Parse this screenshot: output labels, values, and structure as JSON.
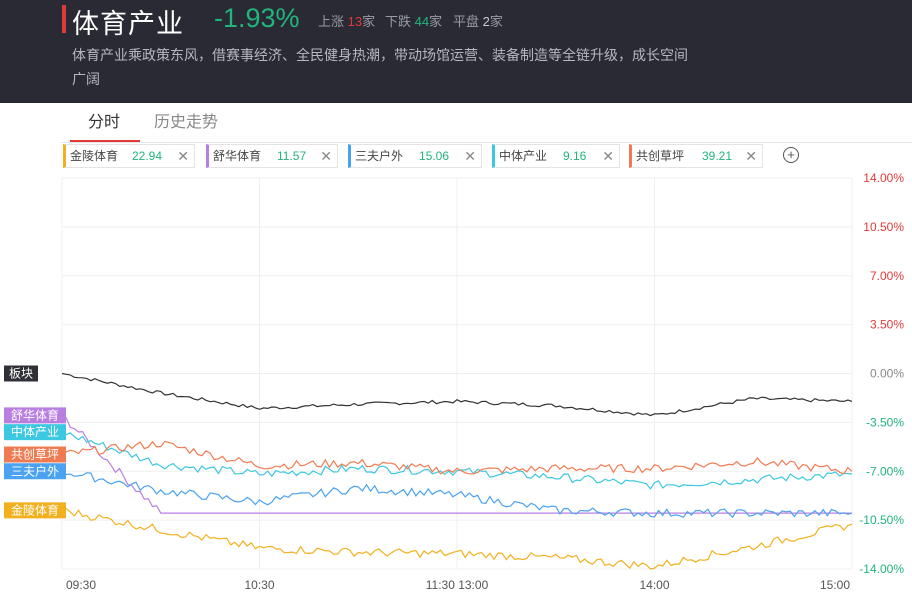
{
  "header": {
    "title": "体育产业",
    "change": "-1.93%",
    "up_label": "上涨",
    "up_count": "13",
    "down_label": "下跌",
    "down_count": "44",
    "flat_label": "平盘",
    "flat_count": "2",
    "unit": "家",
    "description": "体育产业乘政策东风，借赛事经济、全民健身热潮，带动场馆运营、装备制造等全链升级，成长空间广阔",
    "accent_color": "#e23a3a"
  },
  "tabs": [
    {
      "label": "分时"
    },
    {
      "label": "历史走势"
    }
  ],
  "stocks": [
    {
      "name": "金陵体育",
      "value": "22.94",
      "color": "#f2b01e"
    },
    {
      "name": "舒华体育",
      "value": "11.57",
      "color": "#b97fe0"
    },
    {
      "name": "三夫户外",
      "value": "15.06",
      "color": "#4aa2f0"
    },
    {
      "name": "中体产业",
      "value": "9.16",
      "color": "#3cc8e0"
    },
    {
      "name": "共创草坪",
      "value": "39.21",
      "color": "#f07b52"
    }
  ],
  "chart_data": {
    "type": "line",
    "y_unit": "%",
    "ylim": [
      -14.0,
      14.0
    ],
    "y_ticks": [
      "14.00%",
      "10.50%",
      "7.00%",
      "3.50%",
      "0.00%",
      "-3.50%",
      "-7.00%",
      "-10.50%",
      "-14.00%"
    ],
    "x_ticks": [
      "09:30",
      "10:30",
      "11:30 13:00",
      "14:00",
      "15:00"
    ],
    "x": [
      "09:30",
      "10:00",
      "10:30",
      "11:00",
      "11:30/13:00",
      "13:30",
      "14:00",
      "14:30",
      "15:00"
    ],
    "grid": true,
    "series": [
      {
        "name": "板块",
        "color": "#333333",
        "values": [
          0.0,
          -1.4,
          -2.5,
          -2.2,
          -2.0,
          -2.3,
          -3.0,
          -1.8,
          -2.0
        ]
      },
      {
        "name": "舒华体育",
        "color": "#b97fe0",
        "values": [
          -3.0,
          -10.0,
          -10.0,
          -10.0,
          -10.0,
          -10.0,
          -10.0,
          -10.0,
          -10.0
        ]
      },
      {
        "name": "中体产业",
        "color": "#3cc8e0",
        "values": [
          -4.2,
          -6.5,
          -7.2,
          -6.8,
          -7.0,
          -7.4,
          -8.0,
          -7.6,
          -7.2
        ]
      },
      {
        "name": "共创草坪",
        "color": "#f07b52",
        "values": [
          -5.8,
          -5.0,
          -6.6,
          -6.4,
          -7.0,
          -6.8,
          -6.8,
          -6.3,
          -7.0
        ]
      },
      {
        "name": "三夫户外",
        "color": "#4aa2f0",
        "values": [
          -7.0,
          -8.4,
          -9.2,
          -8.2,
          -8.7,
          -9.8,
          -10.0,
          -10.0,
          -10.0
        ]
      },
      {
        "name": "金陵体育",
        "color": "#f2b01e",
        "values": [
          -9.8,
          -11.2,
          -12.5,
          -12.8,
          -12.9,
          -13.2,
          -13.8,
          -12.4,
          -10.8
        ]
      }
    ],
    "left_labels": [
      {
        "name": "板块",
        "bg": "#2f3038"
      },
      {
        "name": "舒华体育",
        "bg": "#b97fe0"
      },
      {
        "name": "中体产业",
        "bg": "#3cc8e0"
      },
      {
        "name": "共创草坪",
        "bg": "#f07b52"
      },
      {
        "name": "三夫户外",
        "bg": "#4aa2f0"
      },
      {
        "name": "金陵体育",
        "bg": "#f2b01e"
      }
    ]
  }
}
